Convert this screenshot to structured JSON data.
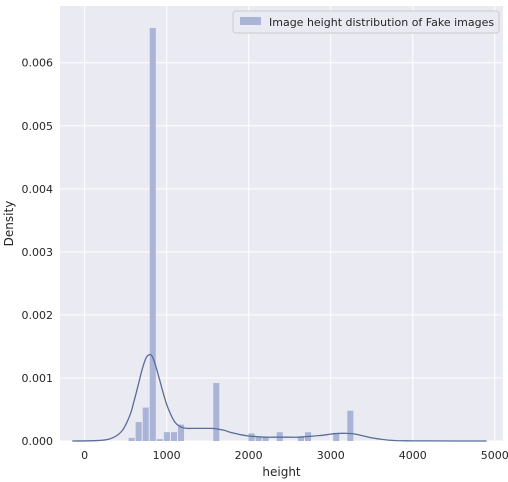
{
  "chart_data": {
    "type": "bar",
    "title": "",
    "xlabel": "height",
    "ylabel": "Density",
    "xlim": [
      -300,
      5100
    ],
    "ylim": [
      0,
      0.0069
    ],
    "grid": true,
    "legend_position": "top-right",
    "x_ticks": [
      0,
      1000,
      2000,
      3000,
      4000,
      5000
    ],
    "x_tick_labels": [
      "0",
      "1000",
      "2000",
      "3000",
      "4000",
      "5000"
    ],
    "y_ticks": [
      0,
      0.001,
      0.002,
      0.003,
      0.004,
      0.005,
      0.006
    ],
    "y_tick_labels": [
      "0.000",
      "0.001",
      "0.002",
      "0.003",
      "0.004",
      "0.005",
      "0.006"
    ],
    "colors": {
      "background": "#eaeaf2",
      "grid": "#ffffff",
      "bar": "#a9b4d7",
      "kde": "#5a6c98"
    },
    "histogram": {
      "series_name": "Image height distribution of Fake images",
      "bin_edges": [
        530,
        616,
        702,
        788,
        874,
        960,
        1046,
        1132,
        1218,
        1304,
        1390,
        1476,
        1562,
        1648,
        1734,
        1820,
        1906,
        1992,
        2078,
        2164,
        2250,
        2336,
        2422,
        2508,
        2594,
        2680,
        2766,
        2852,
        2938,
        3024,
        3110,
        3196,
        3282
      ],
      "density": [
        5e-05,
        0.0003,
        0.00053,
        0.00655,
        3e-05,
        0.00014,
        0.00014,
        0.00026,
        0,
        0,
        0,
        0,
        0.00092,
        0,
        0,
        0,
        0,
        0.00012,
        7e-05,
        7e-05,
        0,
        0.00014,
        0,
        0,
        6e-05,
        0.00014,
        0,
        0,
        0,
        0.00013,
        0,
        0.00048
      ]
    },
    "kde": {
      "name": "Image height distribution of Fake images",
      "x": [
        -150,
        100,
        300,
        450,
        550,
        600,
        650,
        700,
        750,
        790,
        820,
        850,
        900,
        950,
        1000,
        1050,
        1100,
        1150,
        1200,
        1250,
        1300,
        1400,
        1500,
        1560,
        1620,
        1700,
        1800,
        1900,
        2000,
        2100,
        2200,
        2300,
        2400,
        2500,
        2600,
        2700,
        2800,
        2900,
        3000,
        3100,
        3200,
        3300,
        3400,
        3500,
        3600,
        3700,
        3800,
        4000,
        4200,
        4500,
        4900
      ],
      "y": [
        0,
        5e-06,
        3e-05,
        0.00015,
        0.0004,
        0.00062,
        0.00087,
        0.00113,
        0.00132,
        0.00137,
        0.00135,
        0.00126,
        0.00104,
        0.0008,
        0.00058,
        0.00042,
        0.0003,
        0.00024,
        0.00021,
        0.0002,
        0.0002,
        0.0002,
        0.0002,
        0.0002,
        0.00019,
        0.00017,
        0.00013,
        0.0001,
        8e-05,
        7e-05,
        6e-05,
        6e-05,
        6e-05,
        6e-05,
        6e-05,
        7e-05,
        8e-05,
        9e-05,
        0.00011,
        0.00012,
        0.00012,
        0.00011,
        8e-05,
        5e-05,
        3e-05,
        1.5e-05,
        7e-06,
        2e-06,
        1e-06,
        0,
        0
      ]
    }
  }
}
